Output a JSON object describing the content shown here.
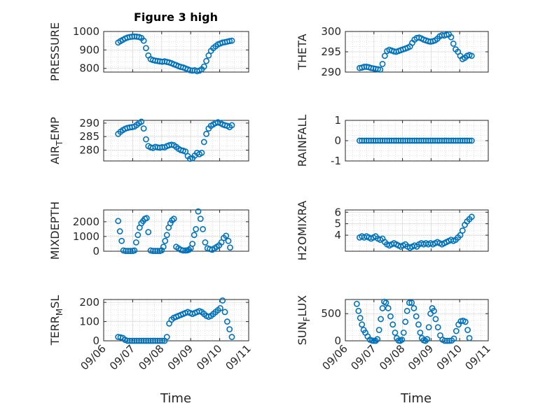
{
  "figure": {
    "title": "Figure 3 high",
    "xlabel": "Time"
  },
  "colors": {
    "marker": "#0072BD",
    "axes": "#262626",
    "grid": "#c8c8c8"
  },
  "chart_data": [
    {
      "type": "scatter",
      "title": "Figure 3 high",
      "xlabel": "",
      "ylabel": "PRESSURE",
      "ylim": [
        780,
        1000
      ],
      "yticks": [
        "800",
        "900",
        "1000"
      ],
      "ytick_values": [
        800,
        900,
        1000
      ],
      "xlim": [
        0,
        5
      ],
      "xticks": [],
      "grid": true,
      "x": [
        0.5,
        0.58,
        0.66,
        0.74,
        0.82,
        0.9,
        0.98,
        1.06,
        1.14,
        1.22,
        1.3,
        1.38,
        1.46,
        1.54,
        1.62,
        1.7,
        1.78,
        1.86,
        1.94,
        2.02,
        2.1,
        2.18,
        2.26,
        2.34,
        2.42,
        2.5,
        2.58,
        2.66,
        2.74,
        2.82,
        2.9,
        2.98,
        3.06,
        3.14,
        3.22,
        3.3,
        3.38,
        3.46,
        3.54,
        3.62,
        3.7,
        3.78,
        3.86,
        3.94,
        4.02,
        4.1,
        4.18,
        4.26,
        4.34,
        4.42
      ],
      "y": [
        940,
        948,
        955,
        962,
        967,
        970,
        972,
        973,
        972,
        970,
        965,
        950,
        910,
        870,
        850,
        845,
        842,
        840,
        838,
        836,
        838,
        835,
        832,
        828,
        822,
        818,
        812,
        808,
        805,
        800,
        795,
        790,
        788,
        790,
        785,
        788,
        795,
        810,
        840,
        870,
        895,
        910,
        920,
        930,
        935,
        940,
        942,
        945,
        948,
        950
      ]
    },
    {
      "type": "scatter",
      "title": "",
      "xlabel": "",
      "ylabel": "THETA",
      "ylim": [
        290,
        300
      ],
      "yticks": [
        "290",
        "295",
        "300"
      ],
      "ytick_values": [
        290,
        295,
        300
      ],
      "xlim": [
        0,
        5
      ],
      "xticks": [],
      "grid": true,
      "x": [
        0.5,
        0.58,
        0.66,
        0.74,
        0.82,
        0.9,
        0.98,
        1.06,
        1.14,
        1.22,
        1.3,
        1.38,
        1.46,
        1.54,
        1.62,
        1.7,
        1.78,
        1.86,
        1.94,
        2.02,
        2.1,
        2.18,
        2.26,
        2.34,
        2.42,
        2.5,
        2.58,
        2.66,
        2.74,
        2.82,
        2.9,
        2.98,
        3.06,
        3.14,
        3.22,
        3.3,
        3.38,
        3.46,
        3.54,
        3.62,
        3.7,
        3.78,
        3.86,
        3.94,
        4.02,
        4.1,
        4.18,
        4.26,
        4.34,
        4.42
      ],
      "y": [
        291.0,
        291.1,
        291.3,
        291.3,
        291.2,
        291.0,
        290.9,
        290.8,
        290.7,
        290.6,
        292.0,
        294.0,
        295.2,
        295.5,
        295.3,
        295.1,
        295.0,
        295.2,
        295.4,
        295.6,
        295.8,
        296.0,
        296.3,
        297.2,
        298.0,
        298.4,
        298.5,
        298.3,
        298.0,
        297.8,
        297.6,
        297.5,
        297.6,
        297.8,
        298.2,
        298.8,
        299.1,
        299.0,
        299.2,
        299.3,
        298.6,
        297.0,
        295.6,
        295.0,
        294.0,
        293.2,
        293.5,
        294.0,
        294.2,
        294.0
      ]
    },
    {
      "type": "scatter",
      "title": "",
      "xlabel": "",
      "ylabel": "AIR_TEMP",
      "ylim": [
        276,
        291
      ],
      "yticks": [
        "280",
        "285",
        "290"
      ],
      "ytick_values": [
        280,
        285,
        290
      ],
      "xlim": [
        0,
        5
      ],
      "xticks": [],
      "grid": true,
      "x": [
        0.5,
        0.58,
        0.66,
        0.74,
        0.82,
        0.9,
        0.98,
        1.06,
        1.14,
        1.22,
        1.3,
        1.38,
        1.46,
        1.54,
        1.62,
        1.7,
        1.78,
        1.86,
        1.94,
        2.02,
        2.1,
        2.18,
        2.26,
        2.34,
        2.42,
        2.5,
        2.58,
        2.66,
        2.74,
        2.82,
        2.9,
        2.98,
        3.06,
        3.14,
        3.22,
        3.3,
        3.38,
        3.46,
        3.54,
        3.62,
        3.7,
        3.78,
        3.86,
        3.94,
        4.02,
        4.1,
        4.18,
        4.26,
        4.34,
        4.42
      ],
      "y": [
        286.0,
        286.8,
        287.4,
        287.9,
        288.2,
        288.4,
        288.5,
        288.7,
        289.3,
        290.0,
        290.5,
        288.0,
        284.0,
        281.5,
        281.0,
        280.8,
        281.2,
        281.0,
        280.9,
        281.1,
        281.0,
        281.5,
        281.8,
        282.0,
        281.8,
        281.2,
        280.5,
        280.0,
        279.8,
        279.5,
        277.8,
        276.8,
        277.0,
        278.0,
        279.0,
        278.5,
        279.0,
        283.0,
        286.0,
        288.0,
        289.0,
        289.5,
        290.0,
        290.3,
        290.0,
        289.5,
        289.2,
        289.0,
        288.5,
        289.2
      ]
    },
    {
      "type": "scatter",
      "title": "",
      "xlabel": "",
      "ylabel": "RAINFALL",
      "ylim": [
        -1,
        1
      ],
      "yticks": [
        "-1",
        "0",
        "1"
      ],
      "ytick_values": [
        -1,
        0,
        1
      ],
      "xlim": [
        0,
        5
      ],
      "xticks": [],
      "grid": true,
      "x": [
        0.5,
        0.58,
        0.66,
        0.74,
        0.82,
        0.9,
        0.98,
        1.06,
        1.14,
        1.22,
        1.3,
        1.38,
        1.46,
        1.54,
        1.62,
        1.7,
        1.78,
        1.86,
        1.94,
        2.02,
        2.1,
        2.18,
        2.26,
        2.34,
        2.42,
        2.5,
        2.58,
        2.66,
        2.74,
        2.82,
        2.9,
        2.98,
        3.06,
        3.14,
        3.22,
        3.3,
        3.38,
        3.46,
        3.54,
        3.62,
        3.7,
        3.78,
        3.86,
        3.94,
        4.02,
        4.1,
        4.18,
        4.26,
        4.34,
        4.42
      ],
      "y": [
        0,
        0,
        0,
        0,
        0,
        0,
        0,
        0,
        0,
        0,
        0,
        0,
        0,
        0,
        0,
        0,
        0,
        0,
        0,
        0,
        0,
        0,
        0,
        0,
        0,
        0,
        0,
        0,
        0,
        0,
        0,
        0,
        0,
        0,
        0,
        0,
        0,
        0,
        0,
        0,
        0,
        0,
        0,
        0,
        0,
        0,
        0,
        0,
        0,
        0
      ]
    },
    {
      "type": "scatter",
      "title": "",
      "xlabel": "",
      "ylabel": "MIXDEPTH",
      "ylim": [
        0,
        2800
      ],
      "yticks": [
        "0",
        "1000",
        "2000"
      ],
      "ytick_values": [
        0,
        1000,
        2000
      ],
      "xlim": [
        0,
        5
      ],
      "xticks": [],
      "grid": true,
      "x": [
        0.5,
        0.56,
        0.62,
        0.68,
        0.76,
        0.84,
        0.92,
        1.0,
        1.06,
        1.12,
        1.18,
        1.24,
        1.3,
        1.36,
        1.42,
        1.48,
        1.54,
        1.62,
        1.7,
        1.78,
        1.86,
        1.94,
        2.0,
        2.06,
        2.12,
        2.18,
        2.24,
        2.3,
        2.36,
        2.42,
        2.5,
        2.58,
        2.66,
        2.74,
        2.82,
        2.88,
        2.94,
        3.0,
        3.06,
        3.12,
        3.18,
        3.26,
        3.34,
        3.42,
        3.5,
        3.58,
        3.66,
        3.74,
        3.82,
        3.9,
        3.98,
        4.06,
        4.14,
        4.22,
        4.3,
        4.36
      ],
      "y": [
        2050,
        1350,
        700,
        50,
        20,
        20,
        20,
        20,
        50,
        600,
        1100,
        1600,
        1900,
        2050,
        2200,
        2250,
        1300,
        50,
        20,
        20,
        20,
        20,
        60,
        300,
        700,
        1100,
        1600,
        1900,
        2100,
        2200,
        300,
        200,
        100,
        50,
        50,
        60,
        100,
        200,
        500,
        1100,
        1500,
        2700,
        2200,
        1500,
        600,
        200,
        150,
        100,
        200,
        300,
        400,
        600,
        900,
        1050,
        700,
        250
      ]
    },
    {
      "type": "scatter",
      "title": "",
      "xlabel": "",
      "ylabel": "H2OMIXRA",
      "ylim": [
        2.6,
        6.2
      ],
      "yticks": [
        "4",
        "5",
        "6"
      ],
      "ytick_values": [
        4,
        5,
        6
      ],
      "xlim": [
        0,
        5
      ],
      "xticks": [],
      "grid": true,
      "x": [
        0.5,
        0.58,
        0.66,
        0.74,
        0.82,
        0.9,
        0.98,
        1.06,
        1.14,
        1.22,
        1.3,
        1.38,
        1.46,
        1.54,
        1.62,
        1.7,
        1.78,
        1.86,
        1.94,
        2.02,
        2.1,
        2.18,
        2.26,
        2.34,
        2.42,
        2.5,
        2.58,
        2.66,
        2.74,
        2.82,
        2.9,
        2.98,
        3.06,
        3.14,
        3.22,
        3.3,
        3.38,
        3.46,
        3.54,
        3.62,
        3.7,
        3.78,
        3.86,
        3.94,
        4.02,
        4.1,
        4.18,
        4.26,
        4.34,
        4.42
      ],
      "y": [
        3.8,
        3.9,
        3.8,
        3.9,
        3.8,
        3.7,
        3.8,
        3.9,
        3.7,
        3.6,
        3.7,
        3.4,
        3.2,
        3.1,
        3.2,
        3.3,
        3.2,
        3.1,
        3.0,
        3.1,
        3.2,
        3.0,
        2.9,
        3.0,
        3.1,
        3.0,
        3.2,
        3.3,
        3.2,
        3.3,
        3.2,
        3.3,
        3.2,
        3.3,
        3.4,
        3.3,
        3.2,
        3.3,
        3.4,
        3.5,
        3.6,
        3.5,
        3.6,
        3.8,
        4.0,
        4.4,
        4.9,
        5.2,
        5.4,
        5.6
      ]
    },
    {
      "type": "scatter",
      "title": "",
      "xlabel": "Time",
      "ylabel": "TERR_MSL",
      "ylim": [
        0,
        215
      ],
      "yticks": [
        "0",
        "100",
        "200"
      ],
      "ytick_values": [
        0,
        100,
        200
      ],
      "xlim": [
        0,
        5
      ],
      "xticks": [
        "09/06",
        "09/07",
        "09/08",
        "09/09",
        "09/10",
        "09/11"
      ],
      "xtick_values": [
        0,
        1,
        2,
        3,
        4,
        5
      ],
      "grid": true,
      "x": [
        0.5,
        0.58,
        0.66,
        0.74,
        0.82,
        0.9,
        0.98,
        1.06,
        1.14,
        1.22,
        1.3,
        1.38,
        1.46,
        1.54,
        1.62,
        1.7,
        1.78,
        1.86,
        1.94,
        2.02,
        2.1,
        2.18,
        2.26,
        2.34,
        2.42,
        2.5,
        2.58,
        2.66,
        2.74,
        2.82,
        2.9,
        2.98,
        3.06,
        3.14,
        3.22,
        3.3,
        3.38,
        3.46,
        3.54,
        3.62,
        3.7,
        3.78,
        3.86,
        3.94,
        4.02,
        4.1,
        4.18,
        4.26,
        4.34,
        4.42
      ],
      "y": [
        20,
        18,
        15,
        5,
        0,
        0,
        0,
        0,
        0,
        0,
        0,
        0,
        0,
        0,
        0,
        0,
        0,
        0,
        0,
        0,
        0,
        20,
        90,
        110,
        120,
        125,
        130,
        135,
        140,
        145,
        150,
        145,
        140,
        145,
        150,
        155,
        150,
        140,
        130,
        125,
        130,
        140,
        150,
        160,
        170,
        210,
        150,
        100,
        60,
        20
      ]
    },
    {
      "type": "scatter",
      "title": "",
      "xlabel": "Time",
      "ylabel": "SUN_FLUX",
      "ylim": [
        0,
        760
      ],
      "yticks": [
        "0",
        "500"
      ],
      "ytick_values": [
        0,
        500
      ],
      "xlim": [
        0,
        5
      ],
      "xticks": [
        "09/06",
        "09/07",
        "09/08",
        "09/09",
        "09/10",
        "09/11"
      ],
      "xtick_values": [
        0,
        1,
        2,
        3,
        4,
        5
      ],
      "grid": true,
      "x": [
        0.4,
        0.46,
        0.52,
        0.58,
        0.64,
        0.7,
        0.78,
        0.86,
        0.94,
        1.0,
        1.06,
        1.12,
        1.18,
        1.24,
        1.3,
        1.36,
        1.42,
        1.5,
        1.58,
        1.66,
        1.74,
        1.8,
        1.86,
        1.92,
        1.98,
        2.04,
        2.1,
        2.16,
        2.24,
        2.32,
        2.4,
        2.48,
        2.56,
        2.62,
        2.68,
        2.74,
        2.8,
        2.86,
        2.92,
        2.98,
        3.04,
        3.1,
        3.16,
        3.24,
        3.32,
        3.4,
        3.48,
        3.56,
        3.64,
        3.72,
        3.8,
        3.88,
        3.96,
        4.04,
        4.12,
        4.2,
        4.28,
        4.34
      ],
      "y": [
        680,
        550,
        420,
        300,
        200,
        150,
        80,
        20,
        5,
        0,
        0,
        30,
        200,
        400,
        600,
        720,
        700,
        600,
        450,
        300,
        150,
        50,
        5,
        0,
        20,
        150,
        350,
        550,
        700,
        700,
        600,
        450,
        300,
        150,
        50,
        10,
        0,
        30,
        250,
        500,
        600,
        550,
        400,
        250,
        100,
        20,
        0,
        0,
        0,
        5,
        40,
        180,
        300,
        360,
        370,
        350,
        200,
        50
      ]
    }
  ]
}
